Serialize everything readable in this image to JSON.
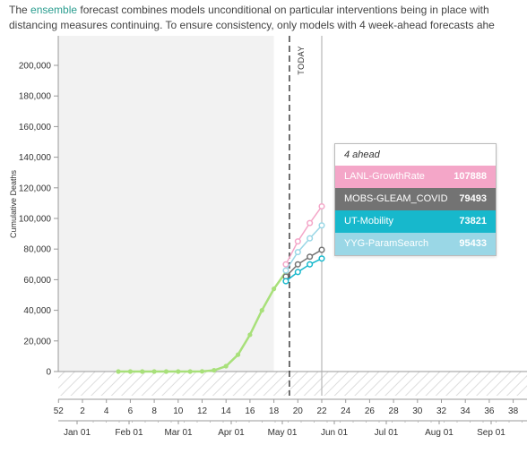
{
  "intro": {
    "text_before_link": "The ",
    "link_text": "ensemble",
    "text_after_link": " forecast combines models unconditional on particular interventions being in place with ",
    "line2": "distancing measures continuing. To ensure consistency, only models with 4 week-ahead forecasts ahe"
  },
  "chart_data": {
    "type": "line",
    "ylabel": "Cumulative Deaths",
    "ylim": [
      0,
      210000
    ],
    "y_ticks": [
      0,
      20000,
      40000,
      60000,
      80000,
      100000,
      120000,
      140000,
      160000,
      180000,
      200000
    ],
    "y_tick_labels": [
      "0",
      "20,000",
      "40,000",
      "60,000",
      "80,000",
      "100,000",
      "120,000",
      "140,000",
      "160,000",
      "180,000",
      "200,000"
    ],
    "week_axis_labels": [
      "52",
      "2",
      "4",
      "6",
      "8",
      "10",
      "12",
      "14",
      "16",
      "18",
      "20",
      "22",
      "24",
      "26",
      "28",
      "30",
      "32",
      "34",
      "36",
      "38"
    ],
    "month_axis_labels": [
      "Jan 01",
      "Feb 01",
      "Mar 01",
      "Apr 01",
      "May 01",
      "Jun 01",
      "Jul 01",
      "Aug 01",
      "Sep 01"
    ],
    "today_label": "TODAY",
    "today_week": 19.3,
    "selected_week": 22,
    "training_region_end_week": 18,
    "observed": {
      "color": "#a8e07a",
      "weeks": [
        5,
        6,
        7,
        8,
        9,
        10,
        11,
        12,
        13,
        14,
        15,
        16,
        17,
        18,
        19
      ],
      "values": [
        0,
        0,
        0,
        0,
        0,
        0,
        0,
        100,
        800,
        3500,
        11000,
        24000,
        40000,
        54000,
        65000
      ]
    },
    "series": [
      {
        "name": "LANL-GrowthRate",
        "color": "#f4a6c8",
        "weeks": [
          19,
          20,
          21,
          22
        ],
        "values": [
          70000,
          85000,
          97000,
          107888
        ]
      },
      {
        "name": "MOBS-GLEAM_COVID",
        "color": "#737373",
        "weeks": [
          19,
          20,
          21,
          22
        ],
        "values": [
          62000,
          70000,
          75000,
          79493
        ]
      },
      {
        "name": "UT-Mobility",
        "color": "#17b8cc",
        "weeks": [
          19,
          20,
          21,
          22
        ],
        "values": [
          59000,
          65000,
          70000,
          73821
        ]
      },
      {
        "name": "YYG-ParamSearch",
        "color": "#9ad7e6",
        "weeks": [
          19,
          20,
          21,
          22
        ],
        "values": [
          66000,
          78000,
          87000,
          95433
        ]
      }
    ]
  },
  "tooltip": {
    "title": "4 ahead",
    "rows": [
      {
        "name": "LANL-GrowthRate",
        "value": "107888",
        "color": "#f4a6c8"
      },
      {
        "name": "MOBS-GLEAM_COVID",
        "value": "79493",
        "color": "#737373"
      },
      {
        "name": "UT-Mobility",
        "value": "73821",
        "color": "#17b8cc"
      },
      {
        "name": "YYG-ParamSearch",
        "value": "95433",
        "color": "#9ad7e6"
      }
    ]
  }
}
